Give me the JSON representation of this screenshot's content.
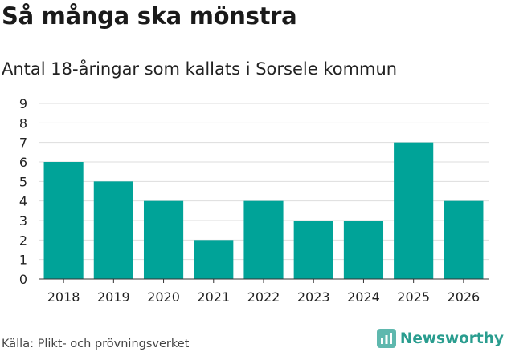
{
  "title": "Så många ska mönstra",
  "subtitle": "Antal 18-åringar som kallats i Sorsele kommun",
  "source": "Källa: Plikt- och prövningsverket",
  "brand": {
    "name": "Newsworthy",
    "icon": "newsworthy-logo-icon"
  },
  "colors": {
    "bar": "#00a398",
    "grid": "#dddddd",
    "axis": "#333333",
    "brand": "#2a9d8f"
  },
  "chart_data": {
    "type": "bar",
    "categories": [
      "2018",
      "2019",
      "2020",
      "2021",
      "2022",
      "2023",
      "2024",
      "2025",
      "2026"
    ],
    "values": [
      6,
      5,
      4,
      2,
      4,
      3,
      3,
      7,
      4
    ],
    "title": "Så många ska mönstra",
    "subtitle": "Antal 18-åringar som kallats i Sorsele kommun",
    "xlabel": "",
    "ylabel": "",
    "ylim": [
      0,
      9
    ],
    "yticks": [
      0,
      1,
      2,
      3,
      4,
      5,
      6,
      7,
      8,
      9
    ],
    "grid": true,
    "legend": "none"
  }
}
